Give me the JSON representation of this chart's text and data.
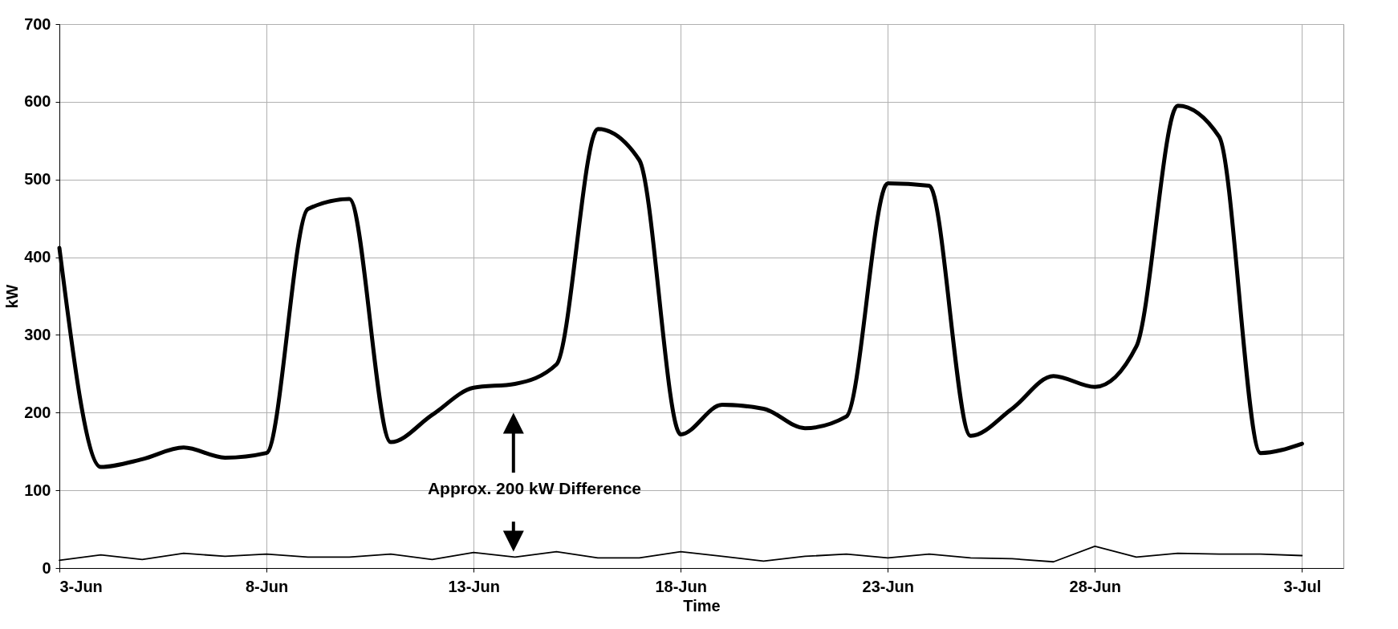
{
  "chart_data": {
    "type": "line",
    "xlabel": "Time",
    "ylabel": "kW",
    "x": [
      "--06-03",
      "--06-04",
      "--06-05",
      "--06-06",
      "--06-07",
      "--06-08",
      "--06-09",
      "--06-10",
      "--06-11",
      "--06-12",
      "--06-13",
      "--06-14",
      "--06-15",
      "--06-16",
      "--06-17",
      "--06-18",
      "--06-19",
      "--06-20",
      "--06-21",
      "--06-22",
      "--06-23",
      "--06-24",
      "--06-25",
      "--06-26",
      "--06-27",
      "--06-28",
      "--06-29",
      "--06-30",
      "--07-01",
      "--07-02",
      "--07-03"
    ],
    "series": [
      {
        "color": "#000000",
        "values": [
          412,
          130,
          140,
          155,
          142,
          148,
          462,
          475,
          162,
          197,
          232,
          237,
          262,
          565,
          525,
          172,
          210,
          205,
          180,
          195,
          495,
          492,
          170,
          205,
          247,
          233,
          285,
          595,
          555,
          148,
          160
        ]
      },
      {
        "color": "#000000",
        "values": [
          10,
          17,
          11,
          19,
          15,
          18,
          14,
          14,
          18,
          11,
          20,
          14,
          21,
          13,
          13,
          21,
          15,
          9,
          15,
          18,
          13,
          18,
          13,
          12,
          8,
          28,
          14,
          19,
          18,
          18,
          16
        ]
      }
    ],
    "xlim": [
      "--06-03",
      "--07-04"
    ],
    "xticks": [
      {
        "value": "--06-03",
        "label": "3-Jun"
      },
      {
        "value": "--06-08",
        "label": "8-Jun"
      },
      {
        "value": "--06-13",
        "label": "13-Jun"
      },
      {
        "value": "--06-18",
        "label": "18-Jun"
      },
      {
        "value": "--06-23",
        "label": "23-Jun"
      },
      {
        "value": "--06-28",
        "label": "28-Jun"
      },
      {
        "value": "--07-03",
        "label": "3-Jul"
      }
    ],
    "ylim": [
      0,
      700
    ],
    "yticks": [
      0,
      100,
      200,
      300,
      400,
      500,
      600,
      700
    ],
    "grid": true,
    "line_style": "solid",
    "marker": "none",
    "annotations": [
      "Approx. 200 kW Difference"
    ]
  }
}
